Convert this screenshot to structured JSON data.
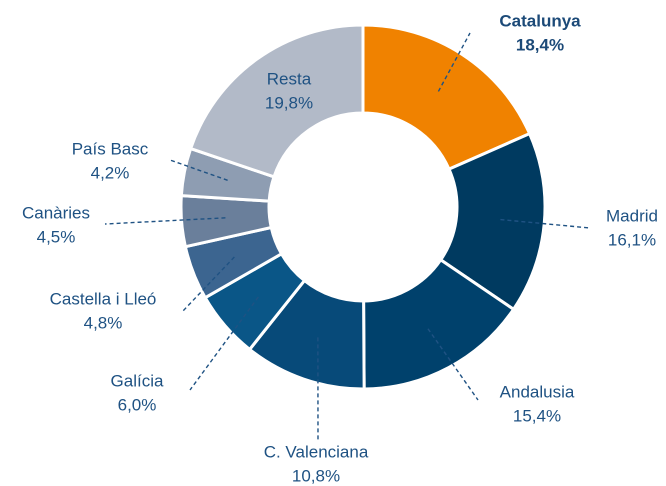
{
  "chart_data": {
    "type": "pie",
    "donut": true,
    "categories": [
      "Catalunya",
      "Madrid",
      "Andalusia",
      "C. Valenciana",
      "Galícia",
      "Castella i Lleó",
      "Canàries",
      "País Basc",
      "Resta"
    ],
    "values": [
      18.4,
      16.1,
      15.4,
      10.8,
      6.0,
      4.8,
      4.5,
      4.2,
      19.8
    ],
    "value_labels": [
      "18,4%",
      "16,1%",
      "15,4%",
      "10,8%",
      "6,0%",
      "4,8%",
      "4,5%",
      "4,2%",
      "19,8%"
    ],
    "colors": [
      "#f08200",
      "#003a60",
      "#00416c",
      "#074a79",
      "#0a5687",
      "#3c6590",
      "#6a7f9b",
      "#8e9db2",
      "#b2bac8"
    ]
  }
}
